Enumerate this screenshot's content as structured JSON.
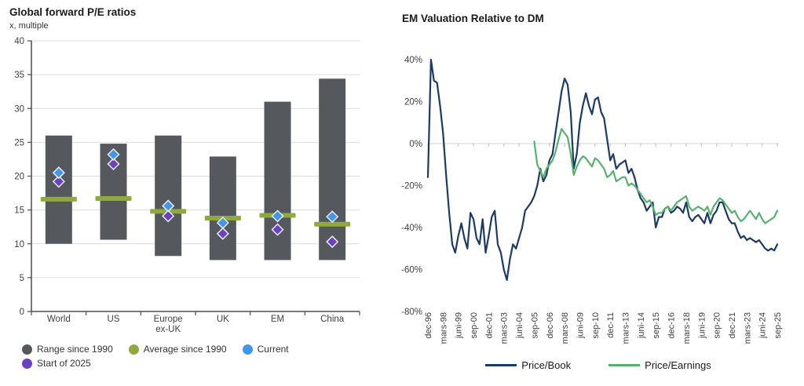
{
  "left_chart_title": "Global forward P/E ratios",
  "right_chart_title": "EM Valuation Relative to DM",
  "chart_data": [
    {
      "type": "bar",
      "variant": "floating-range-bar",
      "title": "Global forward P/E ratios",
      "subtitle": "x, multiple",
      "categories": [
        "World",
        "US",
        "Europe ex-UK",
        "UK",
        "EM",
        "China"
      ],
      "category_label_lines": [
        [
          "World"
        ],
        [
          "US"
        ],
        [
          "Europe",
          "ex-UK"
        ],
        [
          "UK"
        ],
        [
          "EM"
        ],
        [
          "China"
        ]
      ],
      "range_low": [
        10.0,
        10.6,
        8.2,
        7.6,
        7.6,
        7.6
      ],
      "range_high": [
        26.0,
        24.8,
        26.0,
        22.9,
        31.0,
        34.4
      ],
      "average": [
        16.6,
        16.7,
        14.8,
        13.8,
        14.2,
        12.9
      ],
      "current": [
        20.5,
        23.2,
        15.6,
        13.1,
        14.1,
        14.0
      ],
      "start_of_2025": [
        19.2,
        21.8,
        14.1,
        11.5,
        12.1,
        10.3
      ],
      "ylim": [
        0,
        40
      ],
      "ytick_step": 5,
      "grid": true,
      "legend_position": "bottom-left",
      "legend": [
        {
          "label": "Range since 1990",
          "color": "#55595E"
        },
        {
          "label": "Average since 1990",
          "color": "#8FA93F"
        },
        {
          "label": "Current",
          "color": "#3F97E8"
        },
        {
          "label": "Start of 2025",
          "color": "#6A42C1"
        }
      ],
      "colors": {
        "gridline": "#DCDCDC",
        "axis": "#4D4D4D",
        "tick_text": "#404040"
      }
    },
    {
      "type": "line",
      "title": "EM Valuation Relative to DM",
      "ylim": [
        -80,
        40
      ],
      "ytick_step": 20,
      "ytick_labels": [
        "40%",
        "20%",
        "0%",
        "-20%",
        "-40%",
        "-60%",
        "-80%"
      ],
      "grid": "zero-line-only",
      "x_tick_step_months": 15,
      "x_tick_labels": [
        "dec-96",
        "mars-98",
        "juni-99",
        "sep-00",
        "dec-01",
        "mars-03",
        "juni-04",
        "sep-05",
        "dec-06",
        "mars-08",
        "juni-09",
        "sep-10",
        "dec-11",
        "mars-13",
        "juni-14",
        "sep-15",
        "dec-16",
        "mars-18",
        "juni-19",
        "sep-20",
        "dec-21",
        "mars-23",
        "juni-24",
        "sep-25"
      ],
      "legend_position": "bottom",
      "series": [
        {
          "name": "Price/Book",
          "color": "#1B3A64",
          "start_month": 0,
          "step_months": 3,
          "unit": "percent",
          "values": [
            -16,
            40,
            30,
            29,
            18,
            5,
            -15,
            -33,
            -48,
            -52,
            -44,
            -38,
            -45,
            -50,
            -33,
            -36,
            -45,
            -48,
            -36,
            -52,
            -44,
            -35,
            -32,
            -48,
            -52,
            -60,
            -65,
            -55,
            -48,
            -50,
            -45,
            -40,
            -32,
            -30,
            -28,
            -25,
            -20,
            -12,
            -18,
            -15,
            -8,
            -5,
            5,
            15,
            25,
            31,
            28,
            15,
            -12,
            -5,
            10,
            18,
            24,
            18,
            14,
            21,
            22,
            15,
            12,
            2,
            -8,
            -5,
            -12,
            -10,
            -9,
            -8,
            -14,
            -12,
            -16,
            -22,
            -26,
            -28,
            -32,
            -30,
            -28,
            -40,
            -35,
            -35,
            -31,
            -30,
            -33,
            -32,
            -30,
            -31,
            -33,
            -28,
            -35,
            -37,
            -35,
            -34,
            -36,
            -38,
            -33,
            -38,
            -34,
            -32,
            -28,
            -28,
            -32,
            -36,
            -38,
            -38,
            -42,
            -45,
            -44,
            -46,
            -45,
            -46,
            -47,
            -46,
            -48,
            -50,
            -51,
            -50,
            -51,
            -48
          ]
        },
        {
          "name": "Price/Earnings",
          "color": "#57B26E",
          "start_month": 105,
          "step_months": 3,
          "unit": "percent",
          "values": [
            1,
            -10,
            -13,
            -16,
            -12,
            -10,
            -8,
            -4,
            2,
            7,
            5,
            3,
            -5,
            -15,
            -11,
            -8,
            -6,
            -7,
            -9,
            -11,
            -7,
            -8,
            -10,
            -12,
            -16,
            -15,
            -13,
            -18,
            -17,
            -16,
            -16,
            -20,
            -19,
            -20,
            -22,
            -24,
            -26,
            -28,
            -27,
            -30,
            -34,
            -33,
            -33,
            -31,
            -30,
            -32,
            -30,
            -28,
            -27,
            -26,
            -25,
            -30,
            -32,
            -31,
            -30,
            -31,
            -32,
            -30,
            -34,
            -30,
            -28,
            -26,
            -27,
            -29,
            -31,
            -33,
            -32,
            -35,
            -37,
            -36,
            -34,
            -32,
            -34,
            -36,
            -33,
            -36,
            -38,
            -37,
            -36,
            -35,
            -32
          ]
        }
      ]
    }
  ]
}
